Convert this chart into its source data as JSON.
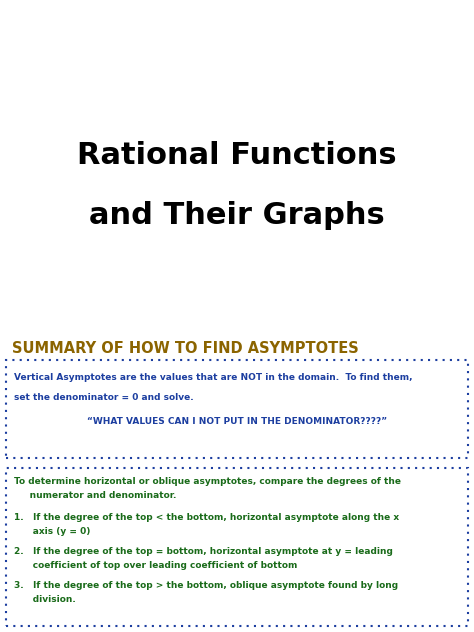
{
  "title_line1": "Rational Functions",
  "title_line2": "and Their Graphs",
  "title_color": "#000000",
  "title_fontsize": 22,
  "summary_heading": "SUMMARY OF HOW TO FIND ASYMPTOTES",
  "summary_heading_color": "#8B6400",
  "summary_heading_fontsize": 10.5,
  "box1_line1": "Vertical Asymptotes are the values that are NOT in the domain.  To find them,",
  "box1_line2": "set the denominator = 0 and solve.",
  "box1_line3": "“WHAT VALUES CAN I NOT PUT IN THE DENOMINATOR????”",
  "box1_text_color": "#1C3EA0",
  "box1_border_color": "#1C3EA0",
  "box2_intro1": "To determine horizontal or oblique asymptotes, compare the degrees of the",
  "box2_intro2": "     numerator and denominator.",
  "box2_item1a": "1.   If the degree of the top < the bottom, horizontal asymptote along the x",
  "box2_item1b": "      axis (y = 0)",
  "box2_item2a": "2.   If the degree of the top = bottom, horizontal asymptote at y = leading",
  "box2_item2b": "      coefficient of top over leading coefficient of bottom",
  "box2_item3a": "3.   If the degree of the top > the bottom, oblique asymptote found by long",
  "box2_item3b": "      division.",
  "box2_text_color": "#1A6B1A",
  "box2_border_color": "#1C3EA0",
  "background_color": "#FFFFFF",
  "fig_width": 4.74,
  "fig_height": 6.32,
  "dpi": 100
}
